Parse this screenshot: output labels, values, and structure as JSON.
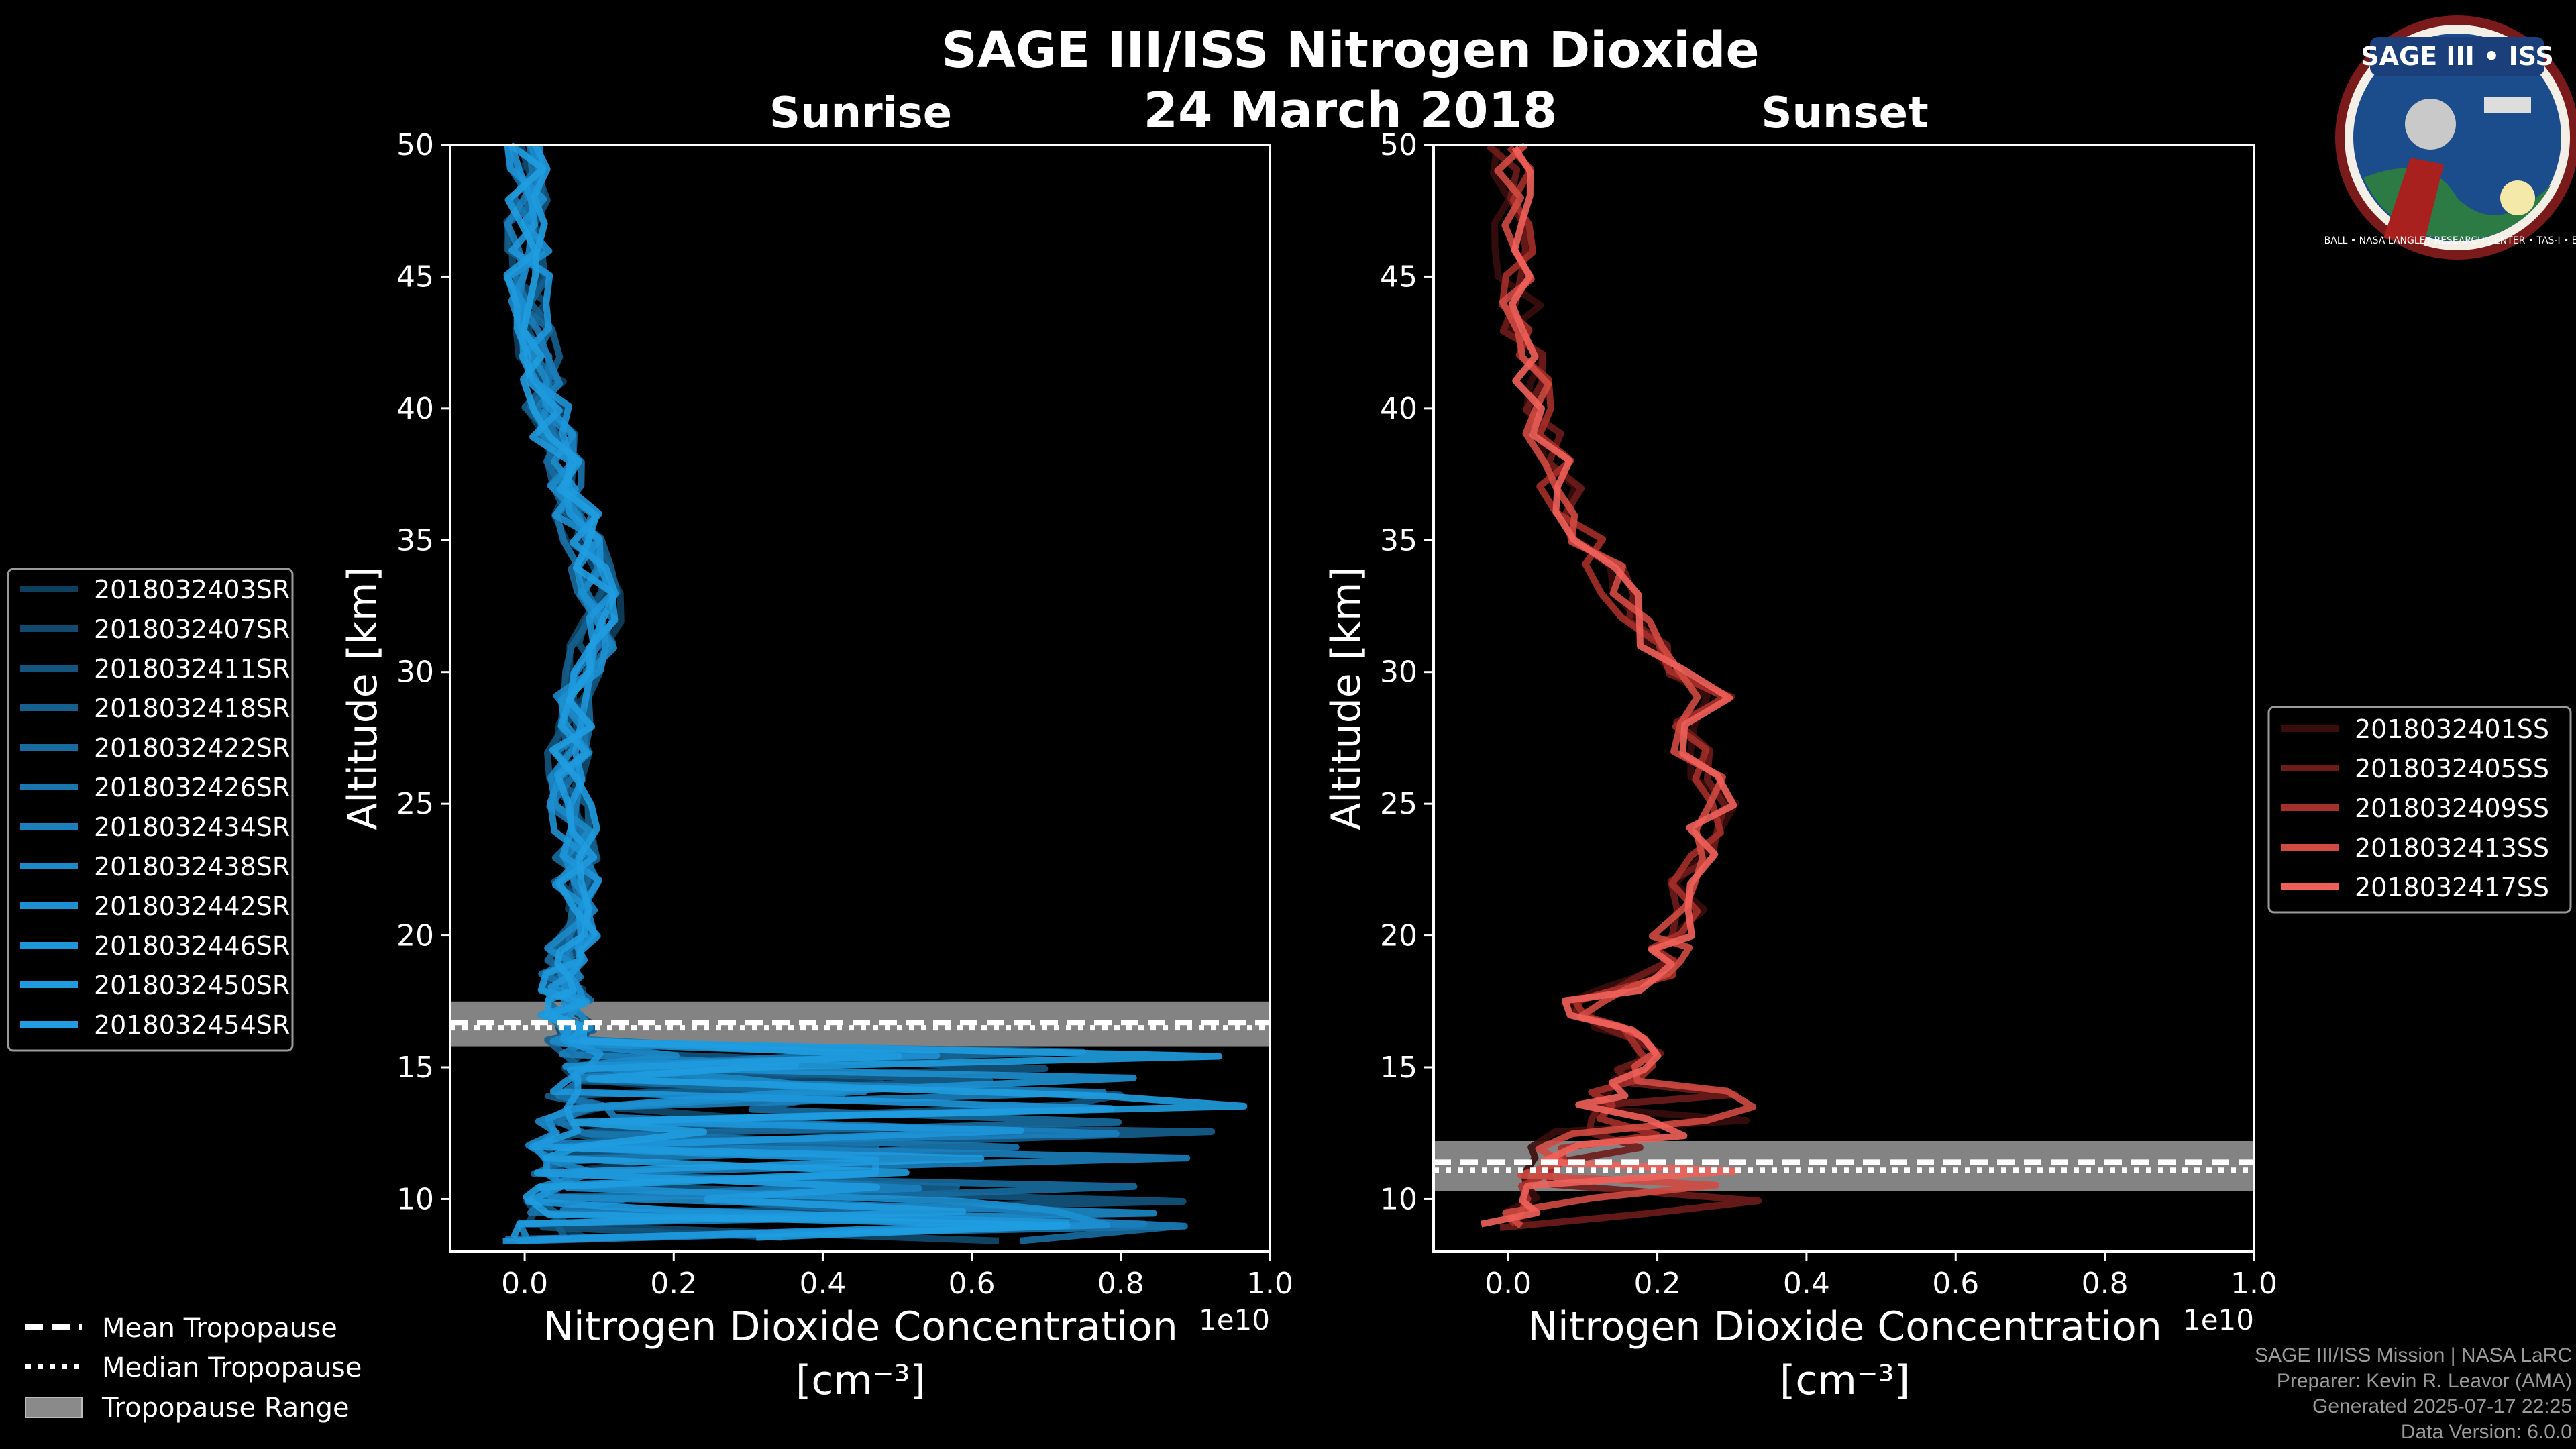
{
  "title": "SAGE III/ISS Nitrogen Dioxide",
  "date": "24 March 2018",
  "logo": {
    "top_text": "SAGE III • ISS",
    "ring_text": "BALL • NASA LANGLEY RESEARCH CENTER • TAS-I • ESA"
  },
  "footer": {
    "line1": "SAGE III/ISS Mission | NASA LaRC",
    "line2": "Preparer: Kevin R. Leavor (AMA)",
    "line3": "Generated 2025-07-17 22:25",
    "line4": "Data Version: 6.0.0"
  },
  "colors": {
    "sunrise": "#1f9de0",
    "sunset": "#f0605a",
    "tropopause_band": "#9a9a9a",
    "background": "#000000"
  },
  "tropopause_legend": {
    "mean": "Mean Tropopause",
    "median": "Median Tropopause",
    "range": "Tropopause Range"
  },
  "chart_data": [
    {
      "type": "line",
      "panel": "Sunrise",
      "title": "Sunrise",
      "xlabel": "Nitrogen Dioxide Concentration",
      "xunit": "[cm⁻³]",
      "ylabel": "Altitude [km]",
      "xlim": [
        -0.1,
        1.0
      ],
      "ylim": [
        8,
        50
      ],
      "x_scale_label": "1e10",
      "x_ticks": [
        0.0,
        0.2,
        0.4,
        0.6,
        0.8,
        1.0
      ],
      "x_tick_labels": [
        "0.0",
        "0.2",
        "0.4",
        "0.6",
        "0.8",
        "1.0"
      ],
      "y_ticks": [
        10,
        15,
        20,
        25,
        30,
        35,
        40,
        45,
        50
      ],
      "y_tick_labels": [
        "10",
        "15",
        "20",
        "25",
        "30",
        "35",
        "40",
        "45",
        "50"
      ],
      "legend_position": "left",
      "series_names": [
        "2018032403SR",
        "2018032407SR",
        "2018032411SR",
        "2018032418SR",
        "2018032422SR",
        "2018032426SR",
        "2018032434SR",
        "2018032438SR",
        "2018032442SR",
        "2018032446SR",
        "2018032450SR",
        "2018032454SR"
      ],
      "series_colors": [
        "#0f3f5e",
        "#114a6e",
        "#13557e",
        "#15608e",
        "#176b9e",
        "#1976ae",
        "#1b80bc",
        "#1c89c8",
        "#1d90d2",
        "#1e96da",
        "#1f9ade",
        "#1f9de0"
      ],
      "tropopause": {
        "mean": 16.7,
        "median": 16.5,
        "range": [
          15.8,
          17.5
        ]
      },
      "profile": {
        "altitude": [
          8.5,
          9,
          9.5,
          10,
          10.5,
          11,
          11.5,
          12,
          12.5,
          13,
          13.5,
          14,
          14.5,
          15,
          15.5,
          16,
          16.5,
          17,
          17.5,
          18,
          18.5,
          19,
          19.5,
          20,
          21,
          22,
          23,
          24,
          25,
          26,
          27,
          28,
          29,
          30,
          31,
          32,
          33,
          34,
          35,
          36,
          37,
          38,
          39,
          40,
          41,
          42,
          43,
          44,
          45,
          46,
          47,
          48,
          49,
          50
        ],
        "no2": [
          0.0,
          0.02,
          0.03,
          0.02,
          0.04,
          0.03,
          0.05,
          0.03,
          0.06,
          0.04,
          0.08,
          0.05,
          0.07,
          0.06,
          0.08,
          0.06,
          0.07,
          0.05,
          0.06,
          0.05,
          0.05,
          0.06,
          0.06,
          0.07,
          0.07,
          0.07,
          0.07,
          0.07,
          0.06,
          0.06,
          0.06,
          0.07,
          0.07,
          0.08,
          0.09,
          0.1,
          0.1,
          0.09,
          0.08,
          0.07,
          0.06,
          0.05,
          0.04,
          0.03,
          0.025,
          0.02,
          0.015,
          0.01,
          0.005,
          0.005,
          0.003,
          0.002,
          0.001,
          0.001
        ]
      }
    },
    {
      "type": "line",
      "panel": "Sunset",
      "title": "Sunset",
      "xlabel": "Nitrogen Dioxide Concentration",
      "xunit": "[cm⁻³]",
      "ylabel": "Altitude [km]",
      "xlim": [
        -0.1,
        1.0
      ],
      "ylim": [
        8,
        50
      ],
      "x_scale_label": "1e10",
      "x_ticks": [
        0.0,
        0.2,
        0.4,
        0.6,
        0.8,
        1.0
      ],
      "x_tick_labels": [
        "0.0",
        "0.2",
        "0.4",
        "0.6",
        "0.8",
        "1.0"
      ],
      "y_ticks": [
        10,
        15,
        20,
        25,
        30,
        35,
        40,
        45,
        50
      ],
      "y_tick_labels": [
        "10",
        "15",
        "20",
        "25",
        "30",
        "35",
        "40",
        "45",
        "50"
      ],
      "legend_position": "right",
      "series_names": [
        "2018032401SS",
        "2018032405SS",
        "2018032409SS",
        "2018032413SS",
        "2018032417SS"
      ],
      "series_colors": [
        "#3a0d0d",
        "#6e1c1a",
        "#a52f29",
        "#d04a41",
        "#f0605a"
      ],
      "tropopause": {
        "mean": 11.4,
        "median": 11.1,
        "range": [
          10.3,
          12.2
        ]
      },
      "profile": {
        "altitude": [
          9,
          9.5,
          10,
          10.5,
          11,
          11.5,
          12,
          12.5,
          13,
          13.5,
          14,
          14.5,
          15,
          15.5,
          16,
          16.5,
          17,
          17.5,
          18,
          18.5,
          19,
          19.5,
          20,
          21,
          22,
          23,
          24,
          25,
          26,
          27,
          28,
          29,
          30,
          31,
          32,
          33,
          34,
          35,
          36,
          37,
          38,
          39,
          40,
          41,
          42,
          43,
          44,
          45,
          46,
          47,
          48,
          49,
          50
        ],
        "no2": [
          0.01,
          0.02,
          0.02,
          0.03,
          0.03,
          0.05,
          0.06,
          0.08,
          0.1,
          0.12,
          0.14,
          0.15,
          0.17,
          0.18,
          0.18,
          0.14,
          0.1,
          0.1,
          0.15,
          0.2,
          0.23,
          0.22,
          0.22,
          0.24,
          0.24,
          0.25,
          0.27,
          0.28,
          0.26,
          0.25,
          0.25,
          0.27,
          0.24,
          0.2,
          0.17,
          0.15,
          0.13,
          0.11,
          0.09,
          0.07,
          0.06,
          0.05,
          0.04,
          0.03,
          0.025,
          0.02,
          0.015,
          0.01,
          0.008,
          0.005,
          0.003,
          0.002,
          0.0
        ]
      }
    }
  ]
}
